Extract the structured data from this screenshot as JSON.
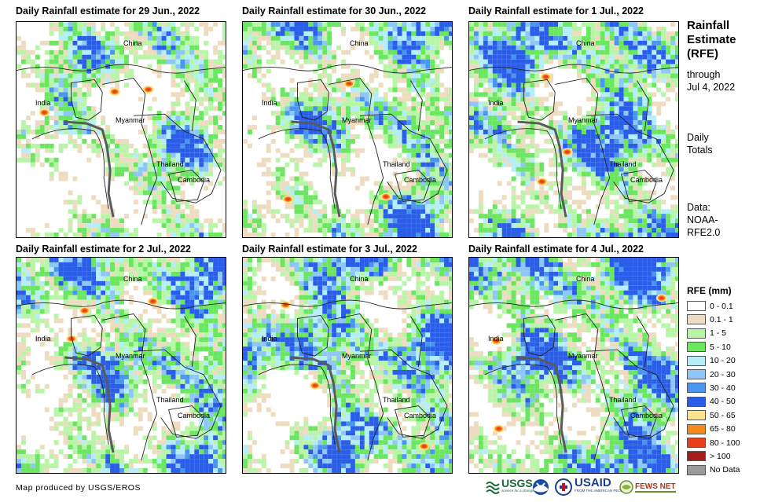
{
  "panels": [
    {
      "title": "Daily Rainfall estimate for 29 Jun., 2022",
      "seed": 11,
      "wet": 0.55
    },
    {
      "title": "Daily Rainfall estimate for 30 Jun., 2022",
      "seed": 23,
      "wet": 0.65
    },
    {
      "title": "Daily Rainfall estimate for 1 Jul., 2022",
      "seed": 37,
      "wet": 0.78
    },
    {
      "title": "Daily Rainfall estimate for 2 Jul., 2022",
      "seed": 41,
      "wet": 0.72
    },
    {
      "title": "Daily Rainfall estimate for 3 Jul., 2022",
      "seed": 53,
      "wet": 0.8
    },
    {
      "title": "Daily Rainfall estimate for 4 Jul., 2022",
      "seed": 67,
      "wet": 0.82
    }
  ],
  "map_labels": {
    "china": "China",
    "india": "India",
    "myanmar": "Myanmar",
    "thailand": "Thailand",
    "cambodia": "Cambodia"
  },
  "side": {
    "title_line1": "Rainfall",
    "title_line2": "Estimate",
    "title_line3": "(RFE)",
    "through": "through",
    "through_date": "Jul 4, 2022",
    "daily": "Daily",
    "totals": "Totals",
    "data_label": "Data:",
    "data_source1": "NOAA-",
    "data_source2": "RFE2.0"
  },
  "legend": {
    "title": "RFE (mm)",
    "items": [
      {
        "label": "0 - 0.1",
        "color": "#ffffff"
      },
      {
        "label": "0.1 - 1",
        "color": "#eedcc0"
      },
      {
        "label": "1 - 5",
        "color": "#b9f5a8"
      },
      {
        "label": "5 - 10",
        "color": "#6be660"
      },
      {
        "label": "10 - 20",
        "color": "#b5eef9"
      },
      {
        "label": "20 - 30",
        "color": "#8ec6f7"
      },
      {
        "label": "30 - 40",
        "color": "#4a95ee"
      },
      {
        "label": "40 - 50",
        "color": "#2a5ee8"
      },
      {
        "label": "50 - 65",
        "color": "#fbe48a"
      },
      {
        "label": "65 - 80",
        "color": "#f58a1c"
      },
      {
        "label": "80 - 100",
        "color": "#e8401e"
      },
      {
        "label": "> 100",
        "color": "#a61c1c"
      },
      {
        "label": "No Data",
        "color": "#9a9a9a"
      }
    ]
  },
  "footer": "Map produced by USGS/EROS",
  "logos": {
    "usgs": "USGS",
    "usgs_tagline": "science for a changing world",
    "usaid": "USAID",
    "usaid_tagline": "FROM THE AMERICAN PEOPLE",
    "fewsnet": "FEWS NET"
  }
}
